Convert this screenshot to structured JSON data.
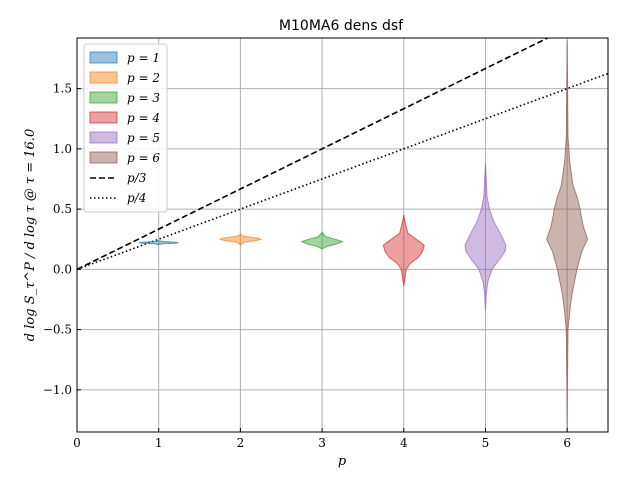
{
  "chart_data": {
    "type": "violin",
    "title": "M10MA6 dens dsf",
    "xlabel": "p",
    "ylabel": "d log S_τ^P / d log τ @ τ = 16.0",
    "xlim": [
      0,
      6.5
    ],
    "ylim": [
      -1.35,
      1.92
    ],
    "xticks": [
      0,
      1,
      2,
      3,
      4,
      5,
      6
    ],
    "yticks": [
      -1.0,
      -0.5,
      0.0,
      0.5,
      1.0,
      1.5
    ],
    "ytick_labels": [
      "−1.0",
      "−0.5",
      "0.0",
      "0.5",
      "1.0",
      "1.5"
    ],
    "grid": true,
    "legend_position": "top-left",
    "violins": [
      {
        "name": "p = 1",
        "color": "#1f77b4",
        "position": 1,
        "profile": [
          [
            0.205,
            0.0
          ],
          [
            0.212,
            0.05
          ],
          [
            0.218,
            0.22
          ],
          [
            0.222,
            0.24
          ],
          [
            0.226,
            0.18
          ],
          [
            0.232,
            0.05
          ],
          [
            0.238,
            0.0
          ]
        ]
      },
      {
        "name": "p = 2",
        "color": "#ff7f0e",
        "position": 2,
        "profile": [
          [
            0.2,
            0.0
          ],
          [
            0.225,
            0.04
          ],
          [
            0.24,
            0.2
          ],
          [
            0.25,
            0.25
          ],
          [
            0.26,
            0.2
          ],
          [
            0.275,
            0.04
          ],
          [
            0.29,
            0.0
          ]
        ]
      },
      {
        "name": "p = 3",
        "color": "#2ca02c",
        "position": 3,
        "profile": [
          [
            0.17,
            0.0
          ],
          [
            0.19,
            0.06
          ],
          [
            0.21,
            0.18
          ],
          [
            0.23,
            0.25
          ],
          [
            0.25,
            0.16
          ],
          [
            0.27,
            0.05
          ],
          [
            0.29,
            0.02
          ],
          [
            0.31,
            0.0
          ]
        ]
      },
      {
        "name": "p = 4",
        "color": "#d62728",
        "position": 4,
        "profile": [
          [
            -0.14,
            0.0
          ],
          [
            0.0,
            0.03
          ],
          [
            0.05,
            0.08
          ],
          [
            0.1,
            0.18
          ],
          [
            0.15,
            0.23
          ],
          [
            0.2,
            0.25
          ],
          [
            0.25,
            0.15
          ],
          [
            0.3,
            0.05
          ],
          [
            0.38,
            0.02
          ],
          [
            0.45,
            0.0
          ]
        ]
      },
      {
        "name": "p = 5",
        "color": "#9467bd",
        "position": 5,
        "profile": [
          [
            -0.34,
            0.0
          ],
          [
            -0.2,
            0.01
          ],
          [
            -0.1,
            0.03
          ],
          [
            0.0,
            0.08
          ],
          [
            0.08,
            0.17
          ],
          [
            0.15,
            0.24
          ],
          [
            0.2,
            0.25
          ],
          [
            0.3,
            0.18
          ],
          [
            0.4,
            0.1
          ],
          [
            0.5,
            0.05
          ],
          [
            0.6,
            0.02
          ],
          [
            0.75,
            0.01
          ],
          [
            0.88,
            0.0
          ]
        ]
      },
      {
        "name": "p = 6",
        "color": "#8c564b",
        "position": 6,
        "profile": [
          [
            -1.33,
            0.0
          ],
          [
            -1.0,
            0.003
          ],
          [
            -0.5,
            0.01
          ],
          [
            -0.3,
            0.04
          ],
          [
            -0.2,
            0.06
          ],
          [
            0.0,
            0.12
          ],
          [
            0.15,
            0.18
          ],
          [
            0.25,
            0.25
          ],
          [
            0.35,
            0.2
          ],
          [
            0.45,
            0.17
          ],
          [
            0.5,
            0.16
          ],
          [
            0.6,
            0.12
          ],
          [
            0.7,
            0.07
          ],
          [
            0.9,
            0.03
          ],
          [
            1.1,
            0.01
          ],
          [
            1.5,
            0.005
          ],
          [
            1.9,
            0.0
          ]
        ]
      }
    ],
    "reference_lines": [
      {
        "name": "p/3",
        "style": "dashed",
        "slope": 0.3333333
      },
      {
        "name": "p/4",
        "style": "dotted",
        "slope": 0.25
      }
    ]
  }
}
